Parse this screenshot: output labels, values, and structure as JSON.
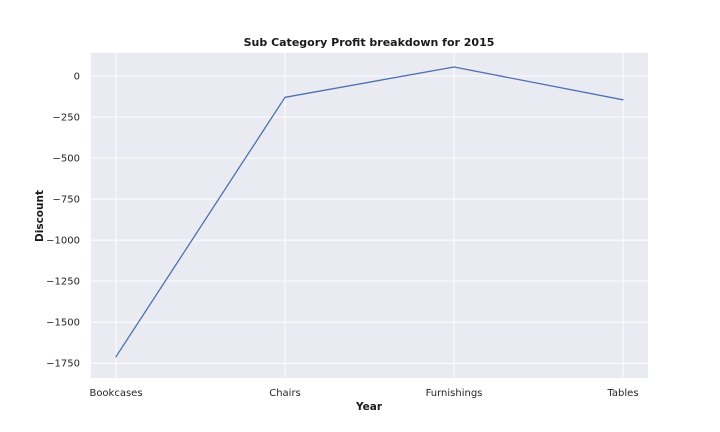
{
  "chart_data": {
    "type": "line",
    "title": "Sub Category Profit breakdown for 2015",
    "xlabel": "Year",
    "ylabel": "Discount",
    "categories": [
      "Bookcases",
      "Chairs",
      "Furnishings",
      "Tables"
    ],
    "series": [
      {
        "values": [
          -1710,
          -130,
          55,
          -145
        ]
      }
    ],
    "ylim": [
      -1840,
      140
    ],
    "yticks": [
      0,
      -250,
      -500,
      -750,
      -1000,
      -1250,
      -1500,
      -1750
    ],
    "ytick_labels": [
      "0",
      "−250",
      "−500",
      "−750",
      "−1000",
      "−1250",
      "−1500",
      "−1750"
    ],
    "grid": true,
    "legend": "none",
    "colors": {
      "plot_background": "#eaeaf2",
      "grid": "#ffffff",
      "line": "#4c72b0"
    }
  }
}
